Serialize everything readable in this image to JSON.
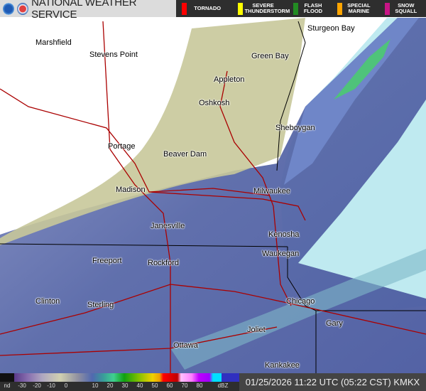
{
  "header": {
    "title": "NATIONAL WEATHER SERVICE",
    "warnings": [
      {
        "label": "TORNADO",
        "color": "#ff0000"
      },
      {
        "label": "SEVERE THUNDERSTORM",
        "color": "#ffff00"
      },
      {
        "label": "FLASH FLOOD",
        "color": "#228b22"
      },
      {
        "label": "SPECIAL MARINE",
        "color": "#ffa500"
      },
      {
        "label": "SNOW SQUALL",
        "color": "#c71585"
      }
    ]
  },
  "cities": [
    "Marshfield",
    "Stevens Point",
    "Appleton",
    "Green Bay",
    "Sturgeon Bay",
    "Oshkosh",
    "Sheboygan",
    "Portage",
    "Beaver Dam",
    "Madison",
    "Milwaukee",
    "Janesville",
    "Kenosha",
    "Waukegan",
    "Freeport",
    "Rockford",
    "Clinton",
    "Sterling",
    "Chicago",
    "Gary",
    "Joliet",
    "Ottawa",
    "Kankakee"
  ],
  "legend": {
    "ticks": [
      "nd",
      "-30",
      "-20",
      "-10",
      "0",
      "10",
      "20",
      "30",
      "40",
      "50",
      "60",
      "70",
      "80",
      "dBZ"
    ]
  },
  "timestamp": "01/25/2026 11:22 UTC (05:22 CST) KMKX"
}
